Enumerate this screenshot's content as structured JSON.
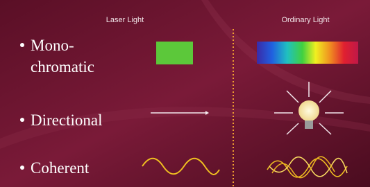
{
  "columns": {
    "laser": "Laser Light",
    "ordinary": "Ordinary Light"
  },
  "rows": [
    {
      "label_lines": [
        "Mono-",
        "chromatic"
      ]
    },
    {
      "label_lines": [
        "Directional"
      ]
    },
    {
      "label_lines": [
        "Coherent"
      ]
    }
  ]
}
